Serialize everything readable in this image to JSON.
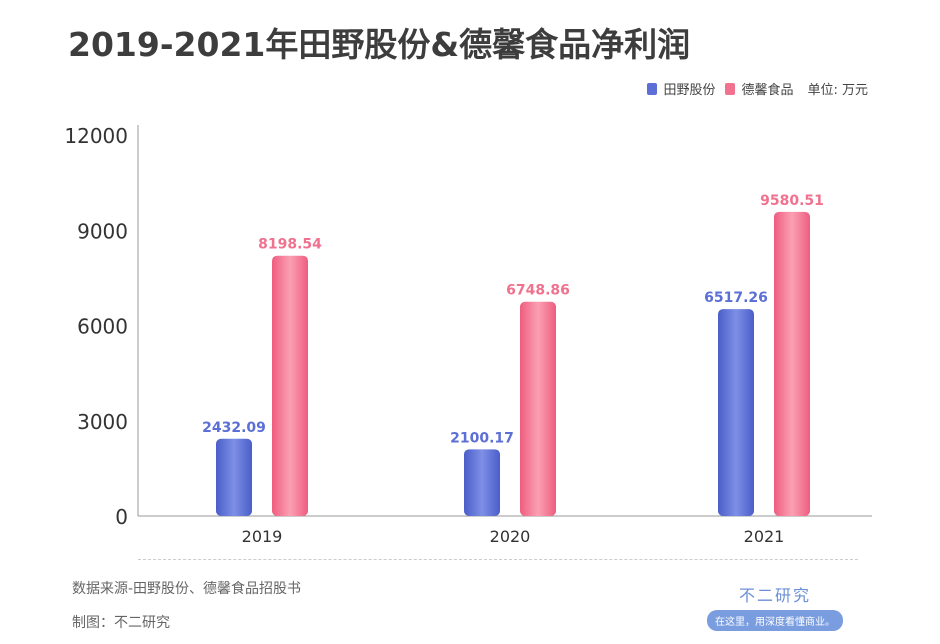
{
  "title": "2019-2021年田野股份&德馨食品净利润",
  "legend": {
    "unit": "单位: 万元"
  },
  "footer": {
    "source": "数据来源-田野股份、德馨食品招股书",
    "made_by": "制图：不二研究"
  },
  "logo": {
    "title": "不二研究",
    "slogan": "在这里，用深度看懂商业。"
  },
  "chart_data": {
    "type": "bar",
    "title": "2019-2021年田野股份&德馨食品净利润",
    "categories": [
      "2019",
      "2020",
      "2021"
    ],
    "series": [
      {
        "name": "田野股份",
        "values": [
          2432.09,
          2100.17,
          6517.26
        ],
        "color": "#5b6fd6"
      },
      {
        "name": "德馨食品",
        "values": [
          8198.54,
          6748.86,
          9580.51
        ],
        "color": "#f0728f"
      }
    ],
    "ylim": [
      0,
      12000
    ],
    "yticks": [
      0,
      3000,
      6000,
      9000,
      12000
    ],
    "unit": "单位: 万元",
    "grid": false,
    "legend_position": "top-right"
  }
}
